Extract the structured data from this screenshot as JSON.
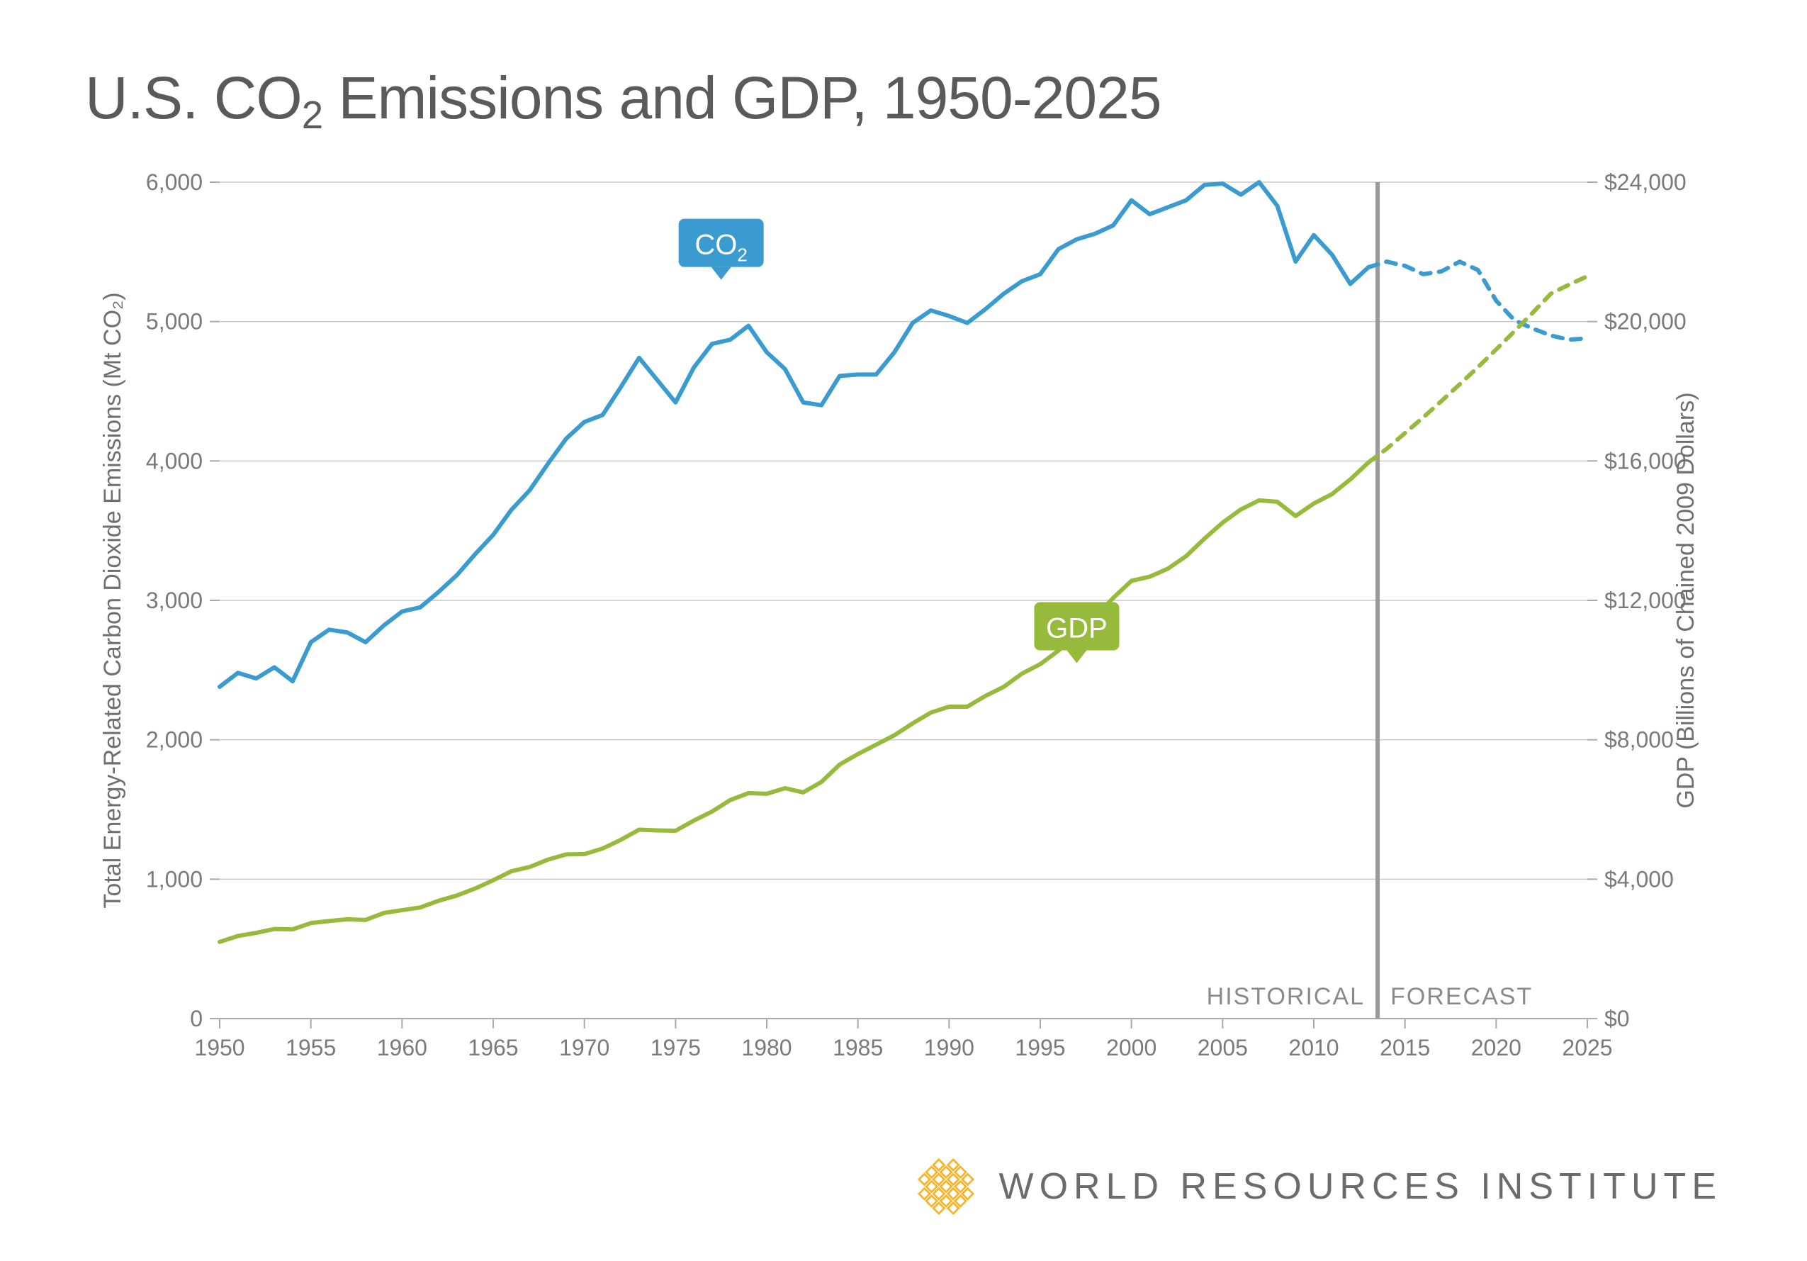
{
  "title_html": "U.S. CO<sub>2</sub> Emissions and GDP, 1950-2025",
  "footer_text": "WORLD RESOURCES INSTITUTE",
  "chart": {
    "type": "line-dual-axis",
    "background_color": "#ffffff",
    "plot_bg": "#ffffff",
    "grid_color": "#c8c8c8",
    "axis_color": "#aaaaaa",
    "axis_line_width": 2,
    "grid_line_width": 1.4,
    "tick_font_size": 32,
    "tick_color": "#7a7a7a",
    "axis_title_font_size": 34,
    "axis_title_color": "#6f6f6f",
    "x": {
      "min": 1950,
      "max": 2025,
      "ticks": [
        1950,
        1955,
        1960,
        1965,
        1970,
        1975,
        1980,
        1985,
        1990,
        1995,
        2000,
        2005,
        2010,
        2015,
        2020,
        2025
      ]
    },
    "y_left": {
      "title_html": "Total Energy-Related Carbon Dioxide Emissions (Mt CO₂)",
      "min": 0,
      "max": 6000,
      "ticks": [
        0,
        1000,
        2000,
        3000,
        4000,
        5000,
        6000
      ],
      "tick_format": "comma"
    },
    "y_right": {
      "title_html": "GDP (Billions of Chained 2009 Dollars)",
      "min": 0,
      "max": 24000,
      "ticks": [
        0,
        4000,
        8000,
        12000,
        16000,
        20000,
        24000
      ],
      "tick_format": "dollar_comma"
    },
    "divider": {
      "year": 2013.5,
      "color": "#9a9a9a",
      "width": 6,
      "left_label": "HISTORICAL",
      "right_label": "FORECAST",
      "label_color": "#8a8a8a",
      "label_font_size": 34
    },
    "series": [
      {
        "name": "CO2",
        "label_html": "CO₂",
        "axis": "left",
        "color": "#3a9bd1",
        "line_width": 6,
        "dash_forecast": "14,12",
        "label_box": {
          "x_year": 1977.5,
          "y_val": 5300,
          "bg": "#3a9bd1",
          "text_color": "#ffffff",
          "font_size": 40
        },
        "data": [
          [
            1950,
            2380
          ],
          [
            1951,
            2480
          ],
          [
            1952,
            2440
          ],
          [
            1953,
            2520
          ],
          [
            1954,
            2420
          ],
          [
            1955,
            2700
          ],
          [
            1956,
            2790
          ],
          [
            1957,
            2770
          ],
          [
            1958,
            2700
          ],
          [
            1959,
            2820
          ],
          [
            1960,
            2920
          ],
          [
            1961,
            2950
          ],
          [
            1962,
            3060
          ],
          [
            1963,
            3180
          ],
          [
            1964,
            3330
          ],
          [
            1965,
            3470
          ],
          [
            1966,
            3650
          ],
          [
            1967,
            3790
          ],
          [
            1968,
            3980
          ],
          [
            1969,
            4160
          ],
          [
            1970,
            4280
          ],
          [
            1971,
            4330
          ],
          [
            1972,
            4530
          ],
          [
            1973,
            4740
          ],
          [
            1974,
            4580
          ],
          [
            1975,
            4420
          ],
          [
            1976,
            4670
          ],
          [
            1977,
            4840
          ],
          [
            1978,
            4870
          ],
          [
            1979,
            4970
          ],
          [
            1980,
            4780
          ],
          [
            1981,
            4660
          ],
          [
            1982,
            4420
          ],
          [
            1983,
            4400
          ],
          [
            1984,
            4610
          ],
          [
            1985,
            4620
          ],
          [
            1986,
            4620
          ],
          [
            1987,
            4780
          ],
          [
            1988,
            4990
          ],
          [
            1989,
            5080
          ],
          [
            1990,
            5040
          ],
          [
            1991,
            4990
          ],
          [
            1992,
            5090
          ],
          [
            1993,
            5200
          ],
          [
            1994,
            5290
          ],
          [
            1995,
            5340
          ],
          [
            1996,
            5520
          ],
          [
            1997,
            5590
          ],
          [
            1998,
            5630
          ],
          [
            1999,
            5690
          ],
          [
            2000,
            5870
          ],
          [
            2001,
            5770
          ],
          [
            2002,
            5820
          ],
          [
            2003,
            5870
          ],
          [
            2004,
            5980
          ],
          [
            2005,
            5990
          ],
          [
            2006,
            5910
          ],
          [
            2007,
            6000
          ],
          [
            2008,
            5830
          ],
          [
            2009,
            5430
          ],
          [
            2010,
            5620
          ],
          [
            2011,
            5480
          ],
          [
            2012,
            5270
          ],
          [
            2013,
            5390
          ]
        ],
        "forecast": [
          [
            2013,
            5390
          ],
          [
            2014,
            5430
          ],
          [
            2015,
            5400
          ],
          [
            2016,
            5340
          ],
          [
            2017,
            5360
          ],
          [
            2018,
            5430
          ],
          [
            2019,
            5370
          ],
          [
            2020,
            5150
          ],
          [
            2021,
            5010
          ],
          [
            2022,
            4950
          ],
          [
            2023,
            4900
          ],
          [
            2024,
            4870
          ],
          [
            2025,
            4880
          ]
        ]
      },
      {
        "name": "GDP",
        "label_html": "GDP",
        "axis": "right",
        "color": "#96bb3c",
        "line_width": 6,
        "dash_forecast": "14,12",
        "label_box": {
          "x_year": 1997,
          "y_val": 10200,
          "bg": "#96bb3c",
          "text_color": "#ffffff",
          "font_size": 40
        },
        "data": [
          [
            1950,
            2200
          ],
          [
            1951,
            2370
          ],
          [
            1952,
            2460
          ],
          [
            1953,
            2570
          ],
          [
            1954,
            2560
          ],
          [
            1955,
            2740
          ],
          [
            1956,
            2800
          ],
          [
            1957,
            2850
          ],
          [
            1958,
            2830
          ],
          [
            1959,
            3030
          ],
          [
            1960,
            3110
          ],
          [
            1961,
            3190
          ],
          [
            1962,
            3380
          ],
          [
            1963,
            3530
          ],
          [
            1964,
            3730
          ],
          [
            1965,
            3970
          ],
          [
            1966,
            4230
          ],
          [
            1967,
            4350
          ],
          [
            1968,
            4560
          ],
          [
            1969,
            4710
          ],
          [
            1970,
            4720
          ],
          [
            1971,
            4880
          ],
          [
            1972,
            5130
          ],
          [
            1973,
            5420
          ],
          [
            1974,
            5400
          ],
          [
            1975,
            5390
          ],
          [
            1976,
            5680
          ],
          [
            1977,
            5940
          ],
          [
            1978,
            6270
          ],
          [
            1979,
            6470
          ],
          [
            1980,
            6450
          ],
          [
            1981,
            6610
          ],
          [
            1982,
            6490
          ],
          [
            1983,
            6790
          ],
          [
            1984,
            7290
          ],
          [
            1985,
            7590
          ],
          [
            1986,
            7860
          ],
          [
            1987,
            8130
          ],
          [
            1988,
            8470
          ],
          [
            1989,
            8780
          ],
          [
            1990,
            8950
          ],
          [
            1991,
            8950
          ],
          [
            1992,
            9260
          ],
          [
            1993,
            9520
          ],
          [
            1994,
            9900
          ],
          [
            1995,
            10170
          ],
          [
            1996,
            10560
          ],
          [
            1997,
            11040
          ],
          [
            1998,
            11520
          ],
          [
            1999,
            12070
          ],
          [
            2000,
            12560
          ],
          [
            2001,
            12680
          ],
          [
            2002,
            12910
          ],
          [
            2003,
            13270
          ],
          [
            2004,
            13770
          ],
          [
            2005,
            14230
          ],
          [
            2006,
            14610
          ],
          [
            2007,
            14870
          ],
          [
            2008,
            14830
          ],
          [
            2009,
            14420
          ],
          [
            2010,
            14780
          ],
          [
            2011,
            15050
          ],
          [
            2012,
            15470
          ],
          [
            2013,
            15960
          ]
        ],
        "forecast": [
          [
            2013,
            15960
          ],
          [
            2014,
            16350
          ],
          [
            2015,
            16800
          ],
          [
            2016,
            17250
          ],
          [
            2017,
            17720
          ],
          [
            2018,
            18200
          ],
          [
            2019,
            18690
          ],
          [
            2020,
            19200
          ],
          [
            2021,
            19720
          ],
          [
            2022,
            20250
          ],
          [
            2023,
            20800
          ],
          [
            2024,
            21060
          ],
          [
            2025,
            21300
          ]
        ]
      }
    ],
    "logo_color": "#f6b429"
  }
}
